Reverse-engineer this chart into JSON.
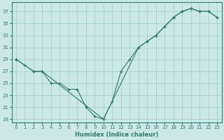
{
  "xlabel": "Humidex (Indice chaleur)",
  "background_color": "#cce8e4",
  "line_color": "#2e7d6e",
  "grid_color": "#a0ccc6",
  "xlim": [
    -0.5,
    23.5
  ],
  "ylim": [
    18.5,
    38.5
  ],
  "yticks": [
    19,
    21,
    23,
    25,
    27,
    29,
    31,
    33,
    35,
    37
  ],
  "xticks": [
    0,
    1,
    2,
    3,
    4,
    5,
    6,
    7,
    8,
    9,
    10,
    11,
    12,
    13,
    14,
    15,
    16,
    17,
    18,
    19,
    20,
    21,
    22,
    23
  ],
  "line1_x": [
    0,
    1,
    2,
    3,
    10,
    11,
    12,
    13,
    14,
    15,
    16,
    17,
    18,
    19,
    20,
    21,
    22,
    23
  ],
  "line1_y": [
    29,
    28,
    27,
    27,
    19,
    22,
    27,
    29,
    31,
    32,
    33,
    34.5,
    36,
    37,
    37.5,
    37,
    37,
    36
  ],
  "line2_x": [
    0,
    2,
    3,
    4,
    5,
    6,
    7,
    8,
    9,
    10,
    14,
    15,
    16,
    17,
    18,
    19,
    20,
    21,
    22,
    23
  ],
  "line2_y": [
    29,
    27,
    27,
    25,
    25,
    24,
    24,
    21,
    19.5,
    19,
    31,
    32,
    33,
    34.5,
    36,
    37,
    37.5,
    37,
    37,
    36
  ]
}
